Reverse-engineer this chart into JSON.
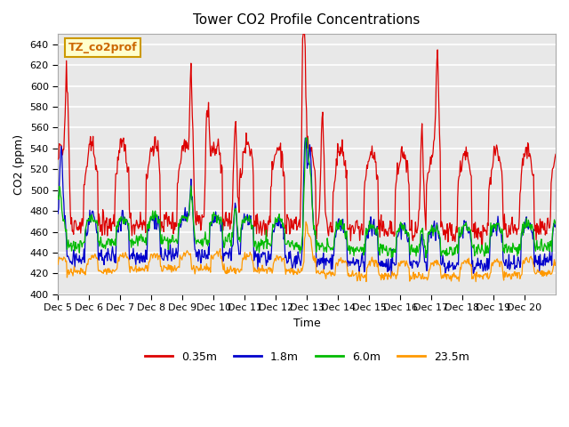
{
  "title": "Tower CO2 Profile Concentrations",
  "xlabel": "Time",
  "ylabel": "CO2 (ppm)",
  "ylim": [
    400,
    650
  ],
  "yticks": [
    400,
    420,
    440,
    460,
    480,
    500,
    520,
    540,
    560,
    580,
    600,
    620,
    640
  ],
  "xtick_labels": [
    "Dec 5",
    "Dec 6",
    "Dec 7",
    "Dec 8",
    "Dec 9",
    "Dec 10",
    "Dec 11",
    "Dec 12",
    "Dec 13",
    "Dec 14",
    "Dec 15",
    "Dec 16",
    "Dec 17",
    "Dec 18",
    "Dec 19",
    "Dec 20"
  ],
  "colors": {
    "0.35m": "#dd0000",
    "1.8m": "#0000cc",
    "6.0m": "#00bb00",
    "23.5m": "#ff9900"
  },
  "legend_labels": [
    "0.35m",
    "1.8m",
    "6.0m",
    "23.5m"
  ],
  "watermark_text": "TZ_co2prof",
  "watermark_bg": "#ffffcc",
  "watermark_border": "#cc9900",
  "bg_color": "#e8e8e8",
  "grid_color": "#ffffff",
  "n_days": 16,
  "points_per_day": 48
}
